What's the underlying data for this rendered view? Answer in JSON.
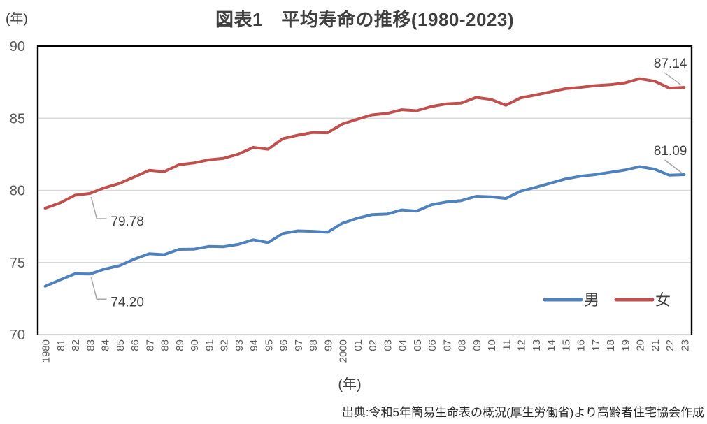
{
  "chart": {
    "title": "図表1　平均寿命の推移(1980-2023)",
    "y_unit_label": "(年)",
    "x_unit_label": "(年)",
    "source": "出典:令和5年簡易生命表の概況(厚生労働省)より高齢者住宅協会作成"
  },
  "chart_data": {
    "type": "line",
    "title": "図表1　平均寿命の推移(1980-2023)",
    "xlabel": "(年)",
    "ylabel": "(年)",
    "categories": [
      "1980",
      "81",
      "82",
      "83",
      "84",
      "85",
      "86",
      "87",
      "88",
      "89",
      "90",
      "91",
      "92",
      "93",
      "94",
      "95",
      "96",
      "97",
      "98",
      "99",
      "2000",
      "01",
      "02",
      "03",
      "04",
      "05",
      "06",
      "07",
      "08",
      "09",
      "10",
      "11",
      "12",
      "13",
      "14",
      "15",
      "16",
      "17",
      "18",
      "19",
      "20",
      "21",
      "22",
      "23"
    ],
    "series": [
      {
        "name": "男",
        "color": "#4F81BD",
        "values": [
          73.35,
          73.79,
          74.22,
          74.2,
          74.54,
          74.78,
          75.23,
          75.61,
          75.54,
          75.91,
          75.92,
          76.11,
          76.09,
          76.25,
          76.57,
          76.38,
          77.01,
          77.19,
          77.16,
          77.1,
          77.72,
          78.07,
          78.32,
          78.36,
          78.64,
          78.56,
          79.0,
          79.19,
          79.29,
          79.59,
          79.55,
          79.44,
          79.94,
          80.21,
          80.5,
          80.79,
          80.98,
          81.09,
          81.25,
          81.41,
          81.64,
          81.47,
          81.05,
          81.09
        ]
      },
      {
        "name": "女",
        "color": "#C0504D",
        "values": [
          78.76,
          79.13,
          79.66,
          79.78,
          80.18,
          80.48,
          80.93,
          81.39,
          81.3,
          81.77,
          81.9,
          82.11,
          82.22,
          82.51,
          82.98,
          82.85,
          83.59,
          83.82,
          84.01,
          83.99,
          84.6,
          84.93,
          85.23,
          85.33,
          85.59,
          85.52,
          85.81,
          85.99,
          86.05,
          86.44,
          86.3,
          85.9,
          86.41,
          86.61,
          86.83,
          87.05,
          87.14,
          87.26,
          87.32,
          87.45,
          87.74,
          87.57,
          87.09,
          87.14
        ]
      }
    ],
    "ylim": [
      70,
      90
    ],
    "yticks": [
      70,
      75,
      80,
      85,
      90
    ],
    "grid": true,
    "legend_position": "inside-bottom-right",
    "annotations": [
      {
        "series": "女",
        "category": "83",
        "index": 3,
        "text": "79.78"
      },
      {
        "series": "男",
        "category": "83",
        "index": 3,
        "text": "74.20"
      },
      {
        "series": "女",
        "category": "23",
        "index": 43,
        "text": "87.14"
      },
      {
        "series": "男",
        "category": "23",
        "index": 43,
        "text": "81.09"
      }
    ],
    "colors": {
      "grid": "#D9D9D9",
      "axis_border": "#000000",
      "tick_label": "#595959",
      "annotation_leader": "#A6A6A6",
      "text": "#404040"
    }
  }
}
